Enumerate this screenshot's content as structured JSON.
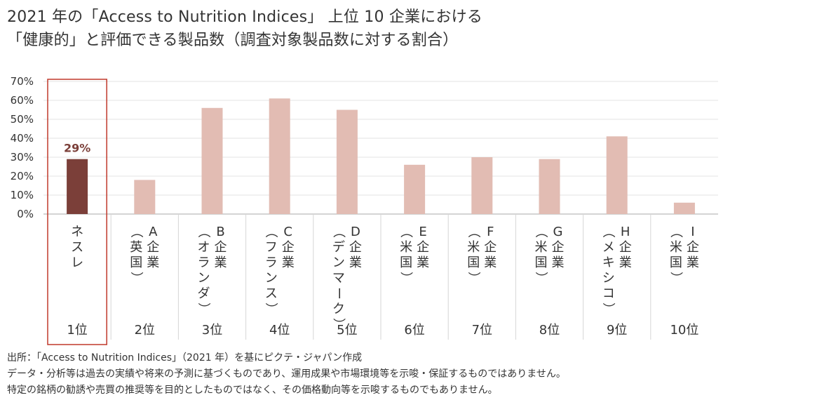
{
  "title": {
    "line1": "2021 年の「Access to Nutrition Indices」 上位 10 企業における",
    "line2": "「健康的」と評価できる製品数（調査対象製品数に対する割合）"
  },
  "chart_data": {
    "type": "bar",
    "categories": [
      {
        "name": "ネスレ",
        "note": "",
        "rank": "1位",
        "highlight": true
      },
      {
        "name": "A企業",
        "note": "（英国）",
        "rank": "2位",
        "highlight": false
      },
      {
        "name": "B企業",
        "note": "（オランダ）",
        "rank": "3位",
        "highlight": false
      },
      {
        "name": "C企業",
        "note": "（フランス）",
        "rank": "4位",
        "highlight": false
      },
      {
        "name": "D企業",
        "note": "（デンマーク）",
        "rank": "5位",
        "highlight": false
      },
      {
        "name": "E企業",
        "note": "（米国）",
        "rank": "6位",
        "highlight": false
      },
      {
        "name": "F企業",
        "note": "（米国）",
        "rank": "7位",
        "highlight": false
      },
      {
        "name": "G企業",
        "note": "（米国）",
        "rank": "8位",
        "highlight": false
      },
      {
        "name": "H企業",
        "note": "（メキシコ）",
        "rank": "9位",
        "highlight": false
      },
      {
        "name": "I企業",
        "note": "（米国）",
        "rank": "10位",
        "highlight": false
      }
    ],
    "values": [
      29,
      18,
      56,
      61,
      55,
      26,
      30,
      29,
      41,
      6
    ],
    "data_labels": [
      {
        "index": 0,
        "text": "29%"
      }
    ],
    "yticks": [
      "0%",
      "10%",
      "20%",
      "30%",
      "40%",
      "50%",
      "60%",
      "70%"
    ],
    "ylim": [
      0,
      70
    ],
    "grid": true,
    "colors": {
      "highlight": "#7b3f39",
      "normal": "#e2bcb3",
      "box": "#c0392b",
      "grid": "#e3e3e3",
      "axis": "#aaaaaa",
      "label": "#7b3f39"
    }
  },
  "footnotes": [
    "出所：「Access to Nutrition Indices」（2021 年）を基にピクテ・ジャパン作成",
    "データ・分析等は過去の実績や将来の予測に基づくものであり、運用成果や市場環境等を示唆・保証するものではありません。",
    "特定の銘柄の勧誘や売買の推奨等を目的としたものではなく、その価格動向等を示唆するものでもありません。"
  ]
}
